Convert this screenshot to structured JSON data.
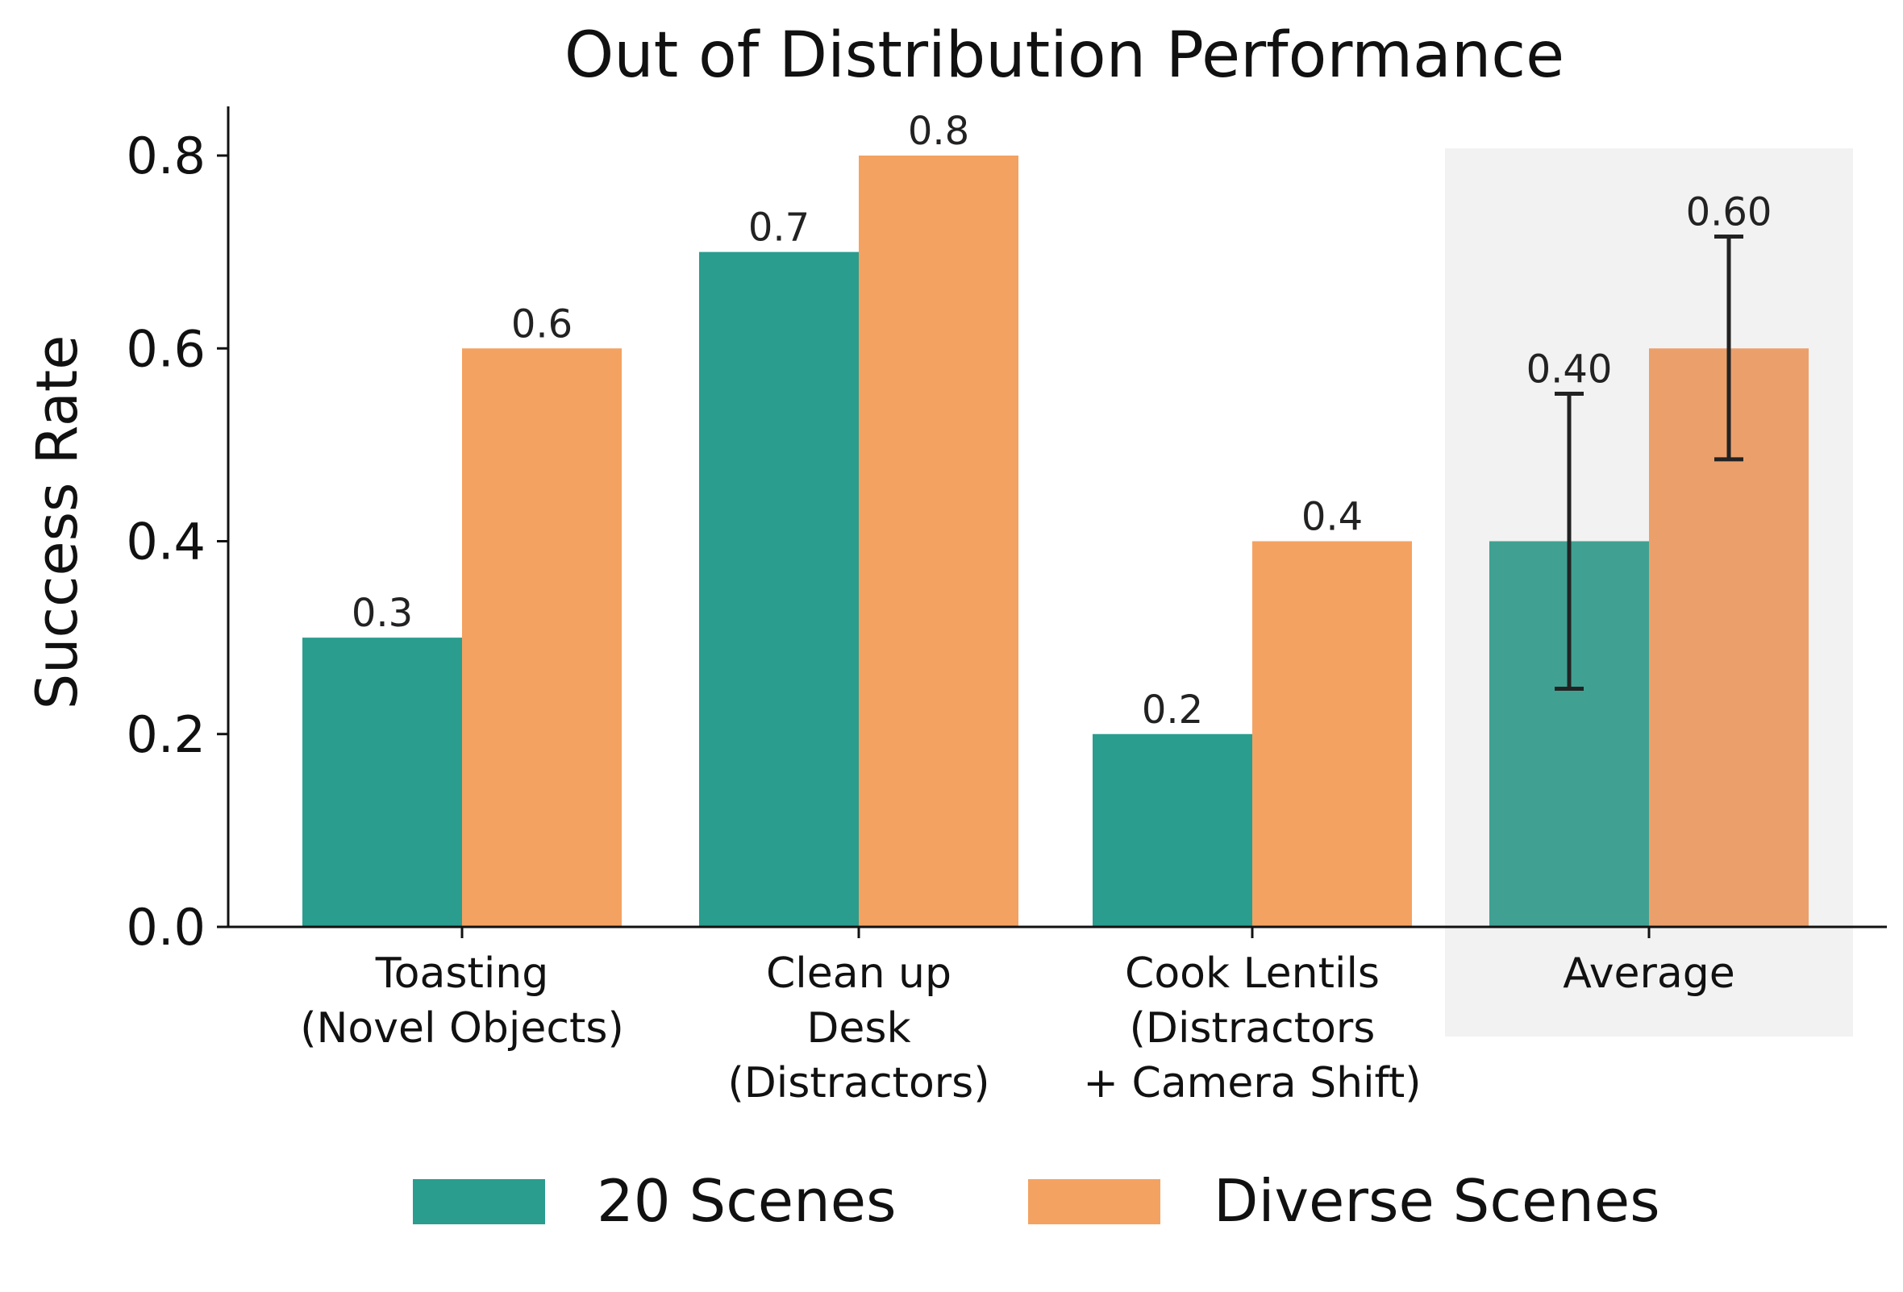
{
  "chart_data": {
    "type": "bar",
    "title": "Out of Distribution Performance",
    "ylabel": "Success Rate",
    "xlabel": "",
    "ylim": [
      0,
      0.85
    ],
    "yticks": [
      "0.0",
      "0.2",
      "0.4",
      "0.6",
      "0.8"
    ],
    "grid": false,
    "legend_position": "bottom",
    "categories": [
      [
        "Toasting",
        "(Novel Objects)"
      ],
      [
        "Clean up",
        "Desk",
        "(Distractors)"
      ],
      [
        "Cook Lentils",
        "(Distractors",
        "+ Camera Shift)"
      ],
      [
        "Average"
      ]
    ],
    "series": [
      {
        "name": "20 Scenes",
        "color": "#2a9d8f",
        "values": [
          0.3,
          0.7,
          0.2,
          0.4
        ],
        "labels": [
          "0.3",
          "0.7",
          "0.2",
          "0.40"
        ]
      },
      {
        "name": "Diverse Scenes",
        "color": "#f4a261",
        "values": [
          0.6,
          0.8,
          0.4,
          0.6
        ],
        "labels": [
          "0.6",
          "0.8",
          "0.4",
          "0.60"
        ]
      }
    ],
    "highlight_category": "Average",
    "highlight_color": "#f2f2f2",
    "average_error_bars": [
      {
        "series": "20 Scenes",
        "low": 0.247,
        "high": 0.553
      },
      {
        "series": "Diverse Scenes",
        "low": 0.485,
        "high": 0.716
      }
    ]
  }
}
